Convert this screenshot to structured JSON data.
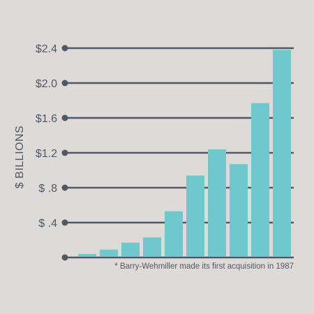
{
  "colors": {
    "background": "#dedad7",
    "bar": "#6fc8cc",
    "grid": "#4f5864",
    "text": "#4f5864"
  },
  "chart_data": {
    "type": "bar",
    "ylabel": "$ BILLIONS",
    "ylim": [
      0,
      2.4
    ],
    "y_tick_values": [
      0.4,
      0.8,
      1.2,
      1.6,
      2.0,
      2.4
    ],
    "y_tick_labels": [
      "$ .4",
      "$ .8",
      "$1.2",
      "$1.6",
      "$2.0",
      "$2.4"
    ],
    "values": [
      0.04,
      0.09,
      0.17,
      0.23,
      0.53,
      0.94,
      1.24,
      1.07,
      1.77,
      2.38
    ],
    "grid": true,
    "footnote": "* Barry-Wehmiller made its first acquisition in 1987"
  }
}
